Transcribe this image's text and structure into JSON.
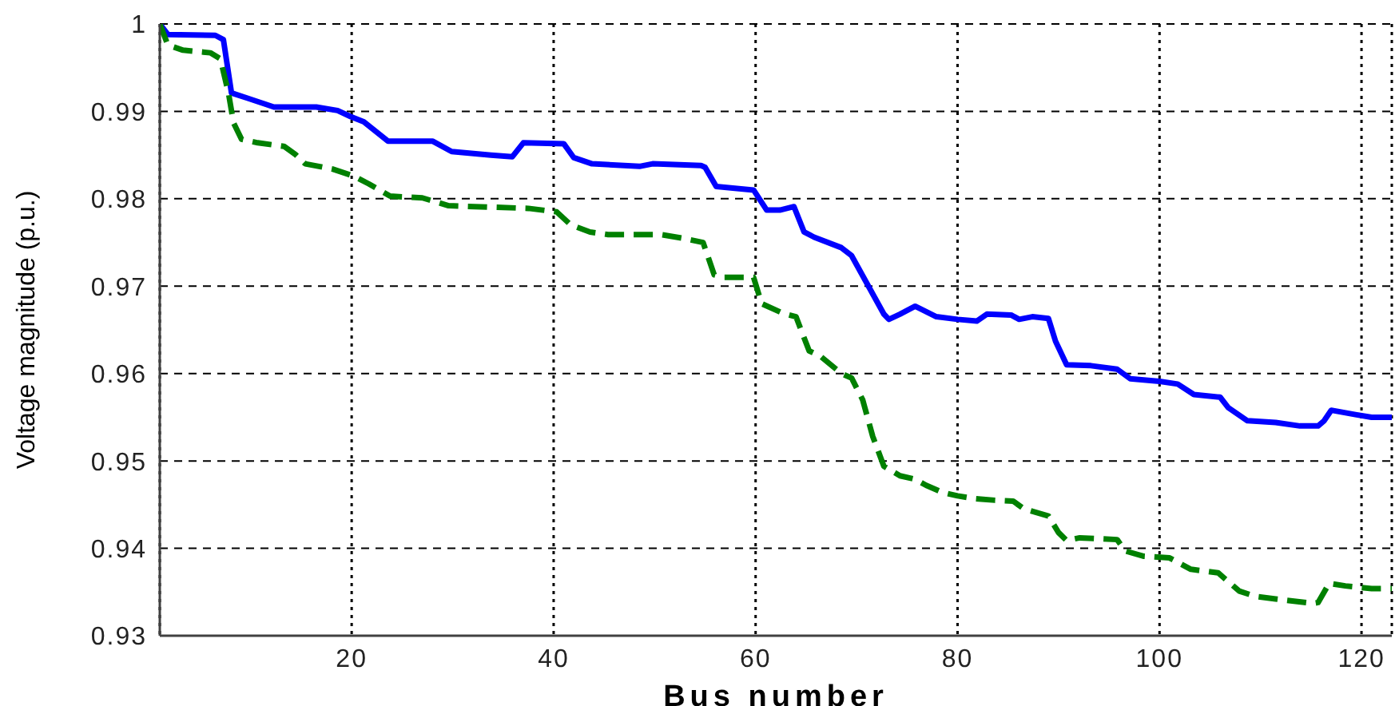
{
  "chart_data": {
    "type": "line",
    "xlabel": "Bus number",
    "ylabel": "Voltage magnitude (p.u.)",
    "xlim": [
      1,
      123
    ],
    "xticks": [
      20,
      40,
      60,
      80,
      100,
      120
    ],
    "ylim": [
      0.93,
      1
    ],
    "yticks": [
      0.93,
      0.94,
      0.95,
      0.96,
      0.97,
      0.98,
      0.99,
      1
    ],
    "grid": true,
    "series": [
      {
        "color": "#0000ff",
        "line_style": "solid",
        "x": [
          1,
          1.8,
          6.5,
          7.3,
          8.1,
          9.7,
          12.3,
          16.5,
          18.6,
          19.9,
          21.2,
          23.6,
          28,
          29.9,
          33.8,
          35.9,
          37,
          41,
          42,
          43.8,
          48.5,
          49.8,
          54.6,
          55,
          56.1,
          59.8,
          61.1,
          62.4,
          63.8,
          64.8,
          65.8,
          68.5,
          69.5,
          72.7,
          73.2,
          74.3,
          75.8,
          77.9,
          80,
          81.9,
          82.9,
          85.3,
          86.1,
          87.4,
          89,
          89.7,
          90.8,
          93.2,
          95.8,
          97.1,
          100,
          101.8,
          103.4,
          106,
          106.8,
          108.7,
          111.5,
          113.9,
          115.7,
          116.3,
          117,
          119.4,
          121,
          123
        ],
        "values": [
          1,
          0.9988,
          0.9987,
          0.9982,
          0.9921,
          0.9915,
          0.9905,
          0.9905,
          0.9901,
          0.9894,
          0.9888,
          0.9866,
          0.9866,
          0.9854,
          0.985,
          0.9848,
          0.9864,
          0.9863,
          0.9847,
          0.984,
          0.9837,
          0.984,
          0.9838,
          0.9836,
          0.9814,
          0.981,
          0.9787,
          0.9787,
          0.9791,
          0.9762,
          0.9756,
          0.9744,
          0.9735,
          0.9668,
          0.9662,
          0.9668,
          0.9677,
          0.9665,
          0.9662,
          0.966,
          0.9668,
          0.9667,
          0.9662,
          0.9665,
          0.9663,
          0.9637,
          0.961,
          0.9609,
          0.9605,
          0.9594,
          0.9591,
          0.9588,
          0.9576,
          0.9573,
          0.9561,
          0.9546,
          0.9544,
          0.954,
          0.954,
          0.9546,
          0.9558,
          0.9553,
          0.955,
          0.955
        ]
      },
      {
        "color": "#008000",
        "line_style": "dashed",
        "x": [
          1,
          1.8,
          3.3,
          6,
          7,
          7.8,
          8.3,
          9.1,
          10.7,
          13.3,
          14.4,
          15.4,
          18.1,
          20.2,
          21.7,
          23.8,
          27,
          29.6,
          37.5,
          40.3,
          41.7,
          43.6,
          45.4,
          50.6,
          52.7,
          54.8,
          55.9,
          56.9,
          59.8,
          60.6,
          62.7,
          64,
          65.3,
          66.4,
          68.5,
          69.5,
          70.6,
          71.6,
          72.7,
          74.3,
          75.8,
          76.9,
          78.5,
          80,
          81.6,
          83.7,
          85.5,
          86.6,
          89,
          90,
          90.8,
          92.1,
          95.8,
          96.6,
          98.4,
          101,
          103.1,
          105.8,
          107.9,
          109.5,
          111.5,
          115.2,
          115.7,
          116.8,
          118.4,
          121,
          123
        ],
        "values": [
          1,
          0.9976,
          0.997,
          0.9967,
          0.996,
          0.9921,
          0.9887,
          0.9868,
          0.9864,
          0.986,
          0.9851,
          0.984,
          0.9834,
          0.9826,
          0.9817,
          0.9803,
          0.9801,
          0.9792,
          0.9789,
          0.9785,
          0.977,
          0.9762,
          0.9759,
          0.9759,
          0.9755,
          0.975,
          0.9713,
          0.971,
          0.971,
          0.968,
          0.9669,
          0.9665,
          0.9626,
          0.962,
          0.96,
          0.9595,
          0.957,
          0.9528,
          0.9494,
          0.9483,
          0.9479,
          0.9472,
          0.9464,
          0.946,
          0.9457,
          0.9455,
          0.9454,
          0.9445,
          0.9437,
          0.9418,
          0.9409,
          0.9412,
          0.941,
          0.9397,
          0.9391,
          0.9389,
          0.9376,
          0.9372,
          0.9351,
          0.9345,
          0.9342,
          0.9337,
          0.9338,
          0.936,
          0.9357,
          0.9354,
          0.9354
        ]
      }
    ]
  }
}
